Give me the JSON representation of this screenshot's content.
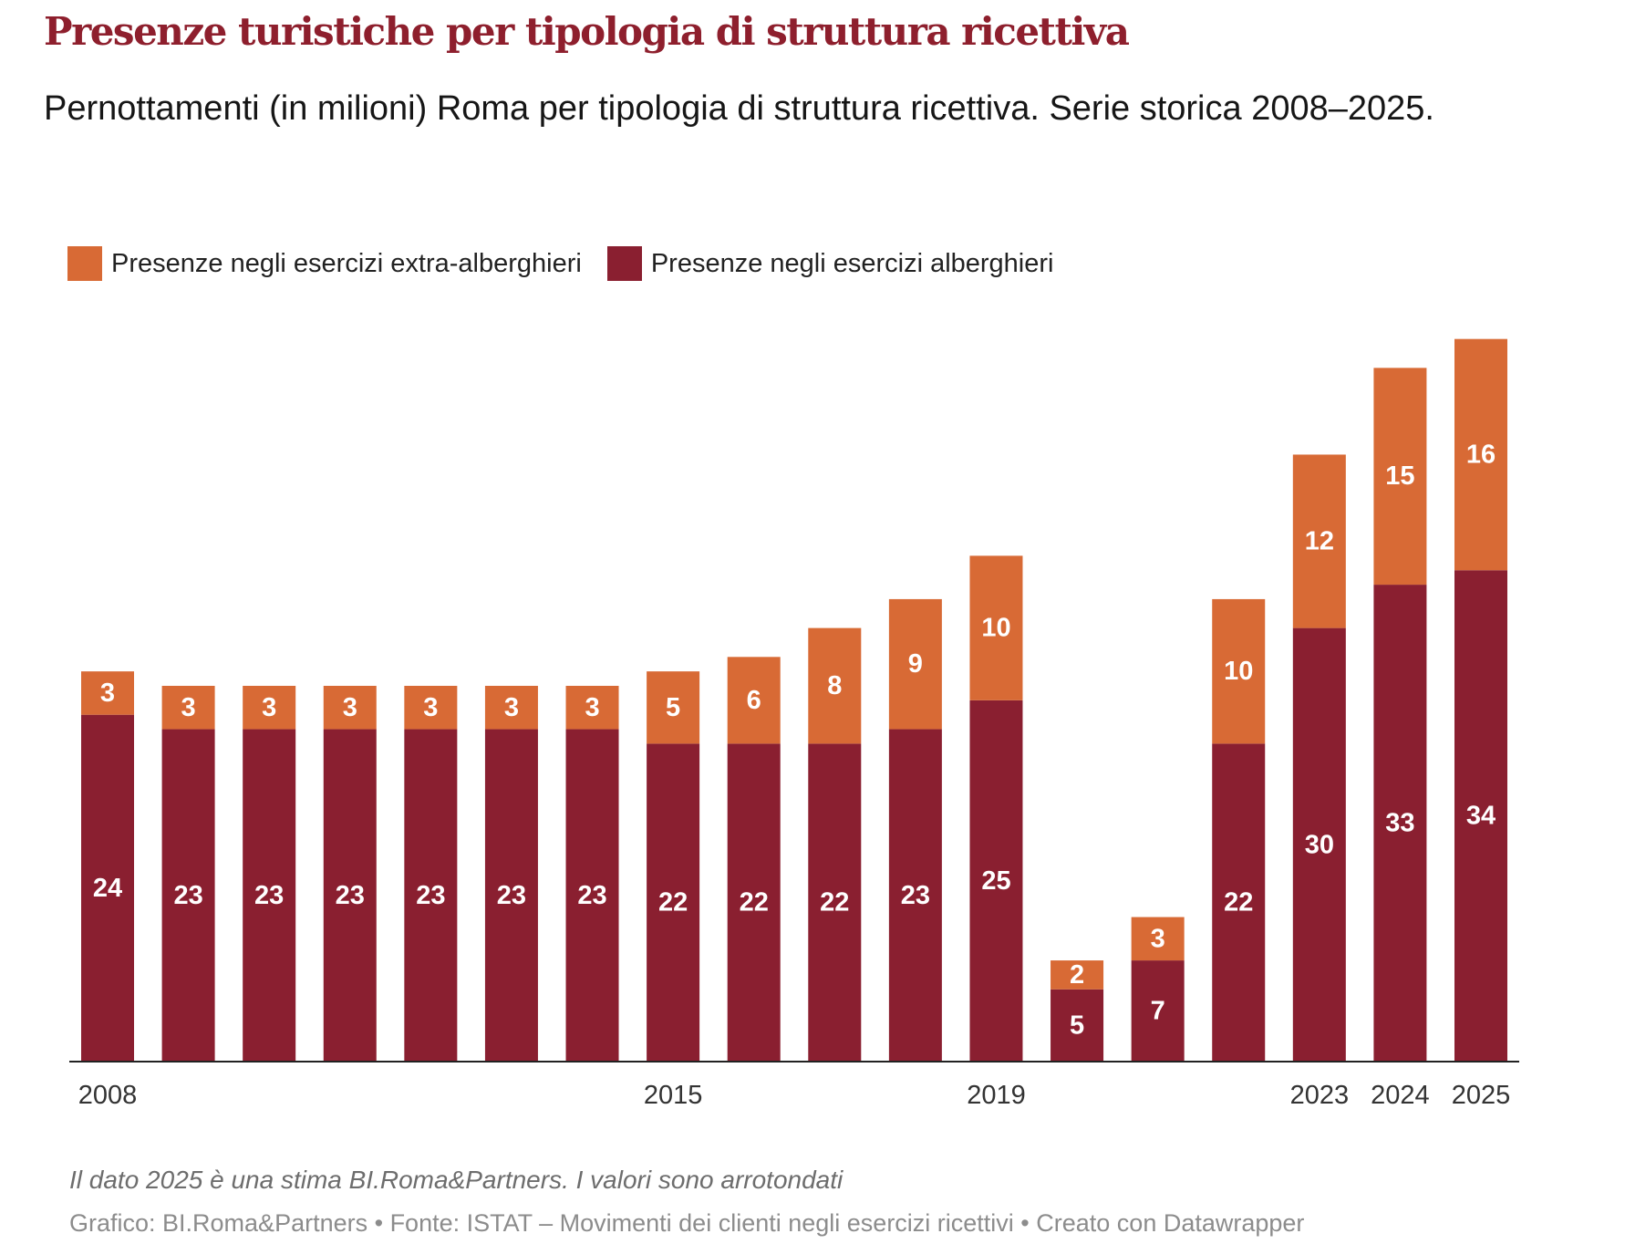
{
  "header": {
    "title": "Presenze turistiche per tipologia di struttura ricettiva",
    "subtitle": "Pernottamenti (in milioni) Roma per tipologia di struttura ricettiva. Serie storica 2008–2025."
  },
  "legend": {
    "extra_label": "Presenze negli esercizi extra-alberghieri",
    "hotel_label": "Presenze negli esercizi alberghieri"
  },
  "colors": {
    "extra": "#d86a35",
    "hotel": "#8a1f30",
    "title": "#8e1f2d"
  },
  "chart_data": {
    "type": "bar",
    "stacked": true,
    "title": "Presenze turistiche per tipologia di struttura ricettiva",
    "xlabel": "",
    "ylabel": "",
    "categories": [
      "2008",
      "2009",
      "2010",
      "2011",
      "2012",
      "2013",
      "2014",
      "2015",
      "2016",
      "2017",
      "2018",
      "2019",
      "2020",
      "2021",
      "2022",
      "2023",
      "2024",
      "2025"
    ],
    "visible_tick_labels": [
      "2008",
      "",
      "",
      "",
      "",
      "",
      "",
      "2015",
      "",
      "",
      "",
      "2019",
      "",
      "",
      "",
      "2023",
      "2024",
      "2025"
    ],
    "series": [
      {
        "name": "Presenze negli esercizi alberghieri",
        "values": [
          24,
          23,
          23,
          23,
          23,
          23,
          23,
          22,
          22,
          22,
          23,
          25,
          5,
          7,
          22,
          30,
          33,
          34
        ]
      },
      {
        "name": "Presenze negli esercizi extra-alberghieri",
        "values": [
          3,
          3,
          3,
          3,
          3,
          3,
          3,
          5,
          6,
          8,
          9,
          10,
          2,
          3,
          10,
          12,
          15,
          16
        ]
      }
    ],
    "ylim": [
      0,
      52
    ],
    "grid": false,
    "legend_position": "top-left"
  },
  "notes": {
    "note": "Il dato 2025 è una stima BI.Roma&Partners. I valori sono arrotondati",
    "source": "Grafico: BI.Roma&Partners • Fonte: ISTAT – Movimenti dei clienti negli esercizi ricettivi • Creato con Datawrapper"
  }
}
